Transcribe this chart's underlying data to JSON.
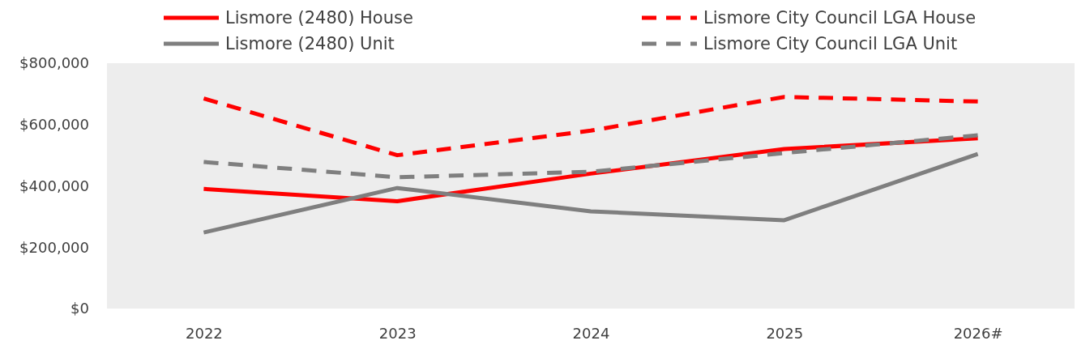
{
  "chart_data": {
    "type": "line",
    "categories": [
      "2022",
      "2023",
      "2024",
      "2025",
      "2026#"
    ],
    "series": [
      {
        "name": "Lismore (2480) House",
        "color": "#ff0000",
        "line_style": "solid",
        "values": [
          390000,
          350000,
          440000,
          520000,
          555000
        ]
      },
      {
        "name": "Lismore City Council LGA House",
        "color": "#ff0000",
        "line_style": "dashed",
        "values": [
          685000,
          500000,
          580000,
          690000,
          675000
        ]
      },
      {
        "name": "Lismore (2480) Unit",
        "color": "#7f7f7f",
        "line_style": "solid",
        "values": [
          248000,
          393000,
          317000,
          288000,
          504000
        ]
      },
      {
        "name": "Lismore City Council LGA Unit",
        "color": "#7f7f7f",
        "line_style": "dashed",
        "values": [
          478000,
          428000,
          446000,
          507000,
          565000
        ]
      }
    ],
    "ylim": [
      0,
      800000
    ],
    "yticks": [
      {
        "value": 0,
        "label": "$0"
      },
      {
        "value": 200000,
        "label": "$200,000"
      },
      {
        "value": 400000,
        "label": "$400,000"
      },
      {
        "value": 600000,
        "label": "$600,000"
      },
      {
        "value": 800000,
        "label": "$800,000"
      }
    ],
    "grid": false,
    "legend": "top",
    "marker": "none"
  }
}
